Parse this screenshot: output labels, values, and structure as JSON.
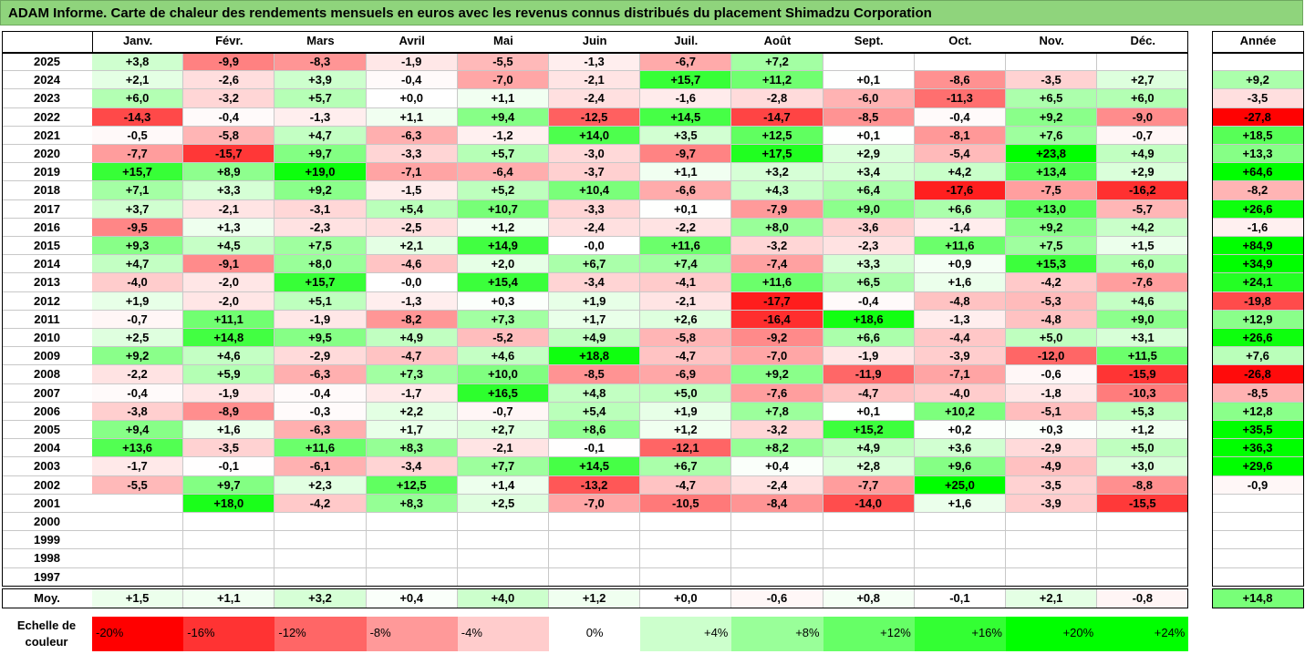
{
  "title": "ADAM Informe. Carte de chaleur des rendements mensuels en euros avec les revenus connus distribués du placement Shimadzu Corporation",
  "chart_data": {
    "type": "heatmap",
    "months": [
      "Janv.",
      "Févr.",
      "Mars",
      "Avril",
      "Mai",
      "Juin",
      "Juil.",
      "Août",
      "Sept.",
      "Oct.",
      "Nov.",
      "Déc."
    ],
    "year_header": "Année",
    "rows": [
      {
        "year": "2025",
        "values": [
          "+3,8",
          "-9,9",
          "-8,3",
          "-1,9",
          "-5,5",
          "-1,3",
          "-6,7",
          "+7,2",
          "",
          "",
          "",
          ""
        ],
        "annual": ""
      },
      {
        "year": "2024",
        "values": [
          "+2,1",
          "-2,6",
          "+3,9",
          "-0,4",
          "-7,0",
          "-2,1",
          "+15,7",
          "+11,2",
          "+0,1",
          "-8,6",
          "-3,5",
          "+2,7"
        ],
        "annual": "+9,2"
      },
      {
        "year": "2023",
        "values": [
          "+6,0",
          "-3,2",
          "+5,7",
          "+0,0",
          "+1,1",
          "-2,4",
          "-1,6",
          "-2,8",
          "-6,0",
          "-11,3",
          "+6,5",
          "+6,0"
        ],
        "annual": "-3,5"
      },
      {
        "year": "2022",
        "values": [
          "-14,3",
          "-0,4",
          "-1,3",
          "+1,1",
          "+9,4",
          "-12,5",
          "+14,5",
          "-14,7",
          "-8,5",
          "-0,4",
          "+9,2",
          "-9,0"
        ],
        "annual": "-27,8"
      },
      {
        "year": "2021",
        "values": [
          "-0,5",
          "-5,8",
          "+4,7",
          "-6,3",
          "-1,2",
          "+14,0",
          "+3,5",
          "+12,5",
          "+0,1",
          "-8,1",
          "+7,6",
          "-0,7"
        ],
        "annual": "+18,5"
      },
      {
        "year": "2020",
        "values": [
          "-7,7",
          "-15,7",
          "+9,7",
          "-3,3",
          "+5,7",
          "-3,0",
          "-9,7",
          "+17,5",
          "+2,9",
          "-5,4",
          "+23,8",
          "+4,9"
        ],
        "annual": "+13,3"
      },
      {
        "year": "2019",
        "values": [
          "+15,7",
          "+8,9",
          "+19,0",
          "-7,1",
          "-6,4",
          "-3,7",
          "+1,1",
          "+3,2",
          "+3,4",
          "+4,2",
          "+13,4",
          "+2,9"
        ],
        "annual": "+64,6"
      },
      {
        "year": "2018",
        "values": [
          "+7,1",
          "+3,3",
          "+9,2",
          "-1,5",
          "+5,2",
          "+10,4",
          "-6,6",
          "+4,3",
          "+6,4",
          "-17,6",
          "-7,5",
          "-16,2"
        ],
        "annual": "-8,2"
      },
      {
        "year": "2017",
        "values": [
          "+3,7",
          "-2,1",
          "-3,1",
          "+5,4",
          "+10,7",
          "-3,3",
          "+0,1",
          "-7,9",
          "+9,0",
          "+6,6",
          "+13,0",
          "-5,7"
        ],
        "annual": "+26,6"
      },
      {
        "year": "2016",
        "values": [
          "-9,5",
          "+1,3",
          "-2,3",
          "-2,5",
          "+1,2",
          "-2,4",
          "-2,2",
          "+8,0",
          "-3,6",
          "-1,4",
          "+9,2",
          "+4,2"
        ],
        "annual": "-1,6"
      },
      {
        "year": "2015",
        "values": [
          "+9,3",
          "+4,5",
          "+7,5",
          "+2,1",
          "+14,9",
          "-0,0",
          "+11,6",
          "-3,2",
          "-2,3",
          "+11,6",
          "+7,5",
          "+1,5"
        ],
        "annual": "+84,9"
      },
      {
        "year": "2014",
        "values": [
          "+4,7",
          "-9,1",
          "+8,0",
          "-4,6",
          "+2,0",
          "+6,7",
          "+7,4",
          "-7,4",
          "+3,3",
          "+0,9",
          "+15,3",
          "+6,0"
        ],
        "annual": "+34,9"
      },
      {
        "year": "2013",
        "values": [
          "-4,0",
          "-2,0",
          "+15,7",
          "-0,0",
          "+15,4",
          "-3,4",
          "-4,1",
          "+11,6",
          "+6,5",
          "+1,6",
          "-4,2",
          "-7,6"
        ],
        "annual": "+24,1"
      },
      {
        "year": "2012",
        "values": [
          "+1,9",
          "-2,0",
          "+5,1",
          "-1,3",
          "+0,3",
          "+1,9",
          "-2,1",
          "-17,7",
          "-0,4",
          "-4,8",
          "-5,3",
          "+4,6"
        ],
        "annual": "-19,8"
      },
      {
        "year": "2011",
        "values": [
          "-0,7",
          "+11,1",
          "-1,9",
          "-8,2",
          "+7,3",
          "+1,7",
          "+2,6",
          "-16,4",
          "+18,6",
          "-1,3",
          "-4,8",
          "+9,0"
        ],
        "annual": "+12,9"
      },
      {
        "year": "2010",
        "values": [
          "+2,5",
          "+14,8",
          "+9,5",
          "+4,9",
          "-5,2",
          "+4,9",
          "-5,8",
          "-9,2",
          "+6,6",
          "-4,4",
          "+5,0",
          "+3,1"
        ],
        "annual": "+26,6"
      },
      {
        "year": "2009",
        "values": [
          "+9,2",
          "+4,6",
          "-2,9",
          "-4,7",
          "+4,6",
          "+18,8",
          "-4,7",
          "-7,0",
          "-1,9",
          "-3,9",
          "-12,0",
          "+11,5"
        ],
        "annual": "+7,6"
      },
      {
        "year": "2008",
        "values": [
          "-2,2",
          "+5,9",
          "-6,3",
          "+7,3",
          "+10,0",
          "-8,5",
          "-6,9",
          "+9,2",
          "-11,9",
          "-7,1",
          "-0,6",
          "-15,9"
        ],
        "annual": "-26,8"
      },
      {
        "year": "2007",
        "values": [
          "-0,4",
          "-1,9",
          "-0,4",
          "-1,7",
          "+16,5",
          "+4,8",
          "+5,0",
          "-7,6",
          "-4,7",
          "-4,0",
          "-1,8",
          "-10,3"
        ],
        "annual": "-8,5"
      },
      {
        "year": "2006",
        "values": [
          "-3,8",
          "-8,9",
          "-0,3",
          "+2,2",
          "-0,7",
          "+5,4",
          "+1,9",
          "+7,8",
          "+0,1",
          "+10,2",
          "-5,1",
          "+5,3"
        ],
        "annual": "+12,8"
      },
      {
        "year": "2005",
        "values": [
          "+9,4",
          "+1,6",
          "-6,3",
          "+1,7",
          "+2,7",
          "+8,6",
          "+1,2",
          "-3,2",
          "+15,2",
          "+0,2",
          "+0,3",
          "+1,2"
        ],
        "annual": "+35,5"
      },
      {
        "year": "2004",
        "values": [
          "+13,6",
          "-3,5",
          "+11,6",
          "+8,3",
          "-2,1",
          "-0,1",
          "-12,1",
          "+8,2",
          "+4,9",
          "+3,6",
          "-2,9",
          "+5,0"
        ],
        "annual": "+36,3"
      },
      {
        "year": "2003",
        "values": [
          "-1,7",
          "-0,1",
          "-6,1",
          "-3,4",
          "+7,7",
          "+14,5",
          "+6,7",
          "+0,4",
          "+2,8",
          "+9,6",
          "-4,9",
          "+3,0"
        ],
        "annual": "+29,6"
      },
      {
        "year": "2002",
        "values": [
          "-5,5",
          "+9,7",
          "+2,3",
          "+12,5",
          "+1,4",
          "-13,2",
          "-4,7",
          "-2,4",
          "-7,7",
          "+25,0",
          "-3,5",
          "-8,8"
        ],
        "annual": "-0,9"
      },
      {
        "year": "2001",
        "values": [
          "",
          "+18,0",
          "-4,2",
          "+8,3",
          "+2,5",
          "-7,0",
          "-10,5",
          "-8,4",
          "-14,0",
          "+1,6",
          "-3,9",
          "-15,5"
        ],
        "annual": ""
      },
      {
        "year": "2000",
        "values": [
          "",
          "",
          "",
          "",
          "",
          "",
          "",
          "",
          "",
          "",
          "",
          ""
        ],
        "annual": ""
      },
      {
        "year": "1999",
        "values": [
          "",
          "",
          "",
          "",
          "",
          "",
          "",
          "",
          "",
          "",
          "",
          ""
        ],
        "annual": ""
      },
      {
        "year": "1998",
        "values": [
          "",
          "",
          "",
          "",
          "",
          "",
          "",
          "",
          "",
          "",
          "",
          ""
        ],
        "annual": ""
      },
      {
        "year": "1997",
        "values": [
          "",
          "",
          "",
          "",
          "",
          "",
          "",
          "",
          "",
          "",
          "",
          ""
        ],
        "annual": ""
      }
    ],
    "average": {
      "label": "Moy.",
      "values": [
        "+1,5",
        "+1,1",
        "+3,2",
        "+0,4",
        "+4,0",
        "+1,2",
        "+0,0",
        "-0,6",
        "+0,8",
        "-0,1",
        "+2,1",
        "-0,8"
      ],
      "annual": "+14,8"
    },
    "color_scale": {
      "label": "Echelle de couleur",
      "stops": [
        "-20%",
        "-16%",
        "-12%",
        "-8%",
        "-4%",
        "0%",
        "+4%",
        "+8%",
        "+12%",
        "+16%",
        "+20%",
        "+24%"
      ],
      "stop_values": [
        -20,
        -16,
        -12,
        -8,
        -4,
        0,
        4,
        8,
        12,
        16,
        20,
        24
      ]
    },
    "colors": {
      "negative_max": "#ff0000",
      "positive_max": "#00ff00",
      "neutral": "#ffffff",
      "title_bg": "#8fd47c"
    }
  }
}
